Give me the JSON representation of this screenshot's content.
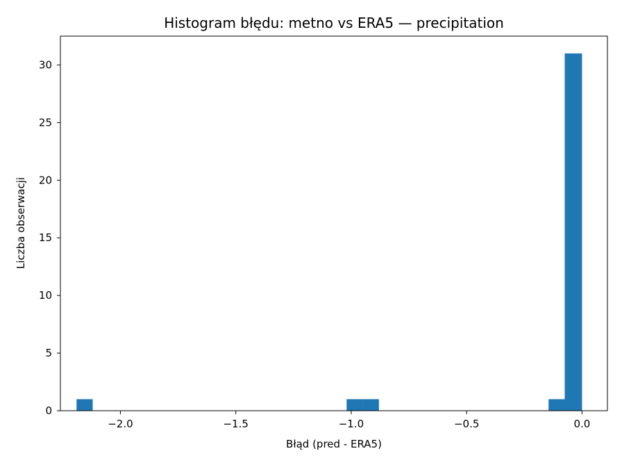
{
  "chart_data": {
    "type": "bar",
    "title": "Histogram błędu: metno vs ERA5 — precipitation",
    "xlabel": "Błąd (pred - ERA5)",
    "ylabel": "Liczba obserwacji",
    "xlim": [
      -2.26,
      0.11
    ],
    "ylim": [
      0,
      32.5
    ],
    "grid": false,
    "color": "#1f77b4",
    "xticks": [
      {
        "value": -2.0,
        "label": "−2.0"
      },
      {
        "value": -1.5,
        "label": "−1.5"
      },
      {
        "value": -1.0,
        "label": "−1.0"
      },
      {
        "value": -0.5,
        "label": "−0.5"
      },
      {
        "value": 0.0,
        "label": "0.0"
      }
    ],
    "yticks": [
      {
        "value": 0,
        "label": "0"
      },
      {
        "value": 5,
        "label": "5"
      },
      {
        "value": 10,
        "label": "10"
      },
      {
        "value": 15,
        "label": "15"
      },
      {
        "value": 20,
        "label": "20"
      },
      {
        "value": 25,
        "label": "25"
      },
      {
        "value": 30,
        "label": "30"
      }
    ],
    "bins": [
      {
        "start": -2.19,
        "end": -2.12,
        "count": 1
      },
      {
        "start": -1.02,
        "end": -0.95,
        "count": 1
      },
      {
        "start": -0.95,
        "end": -0.88,
        "count": 1
      },
      {
        "start": -0.145,
        "end": -0.075,
        "count": 1
      },
      {
        "start": -0.075,
        "end": 0.0,
        "count": 31
      }
    ]
  }
}
